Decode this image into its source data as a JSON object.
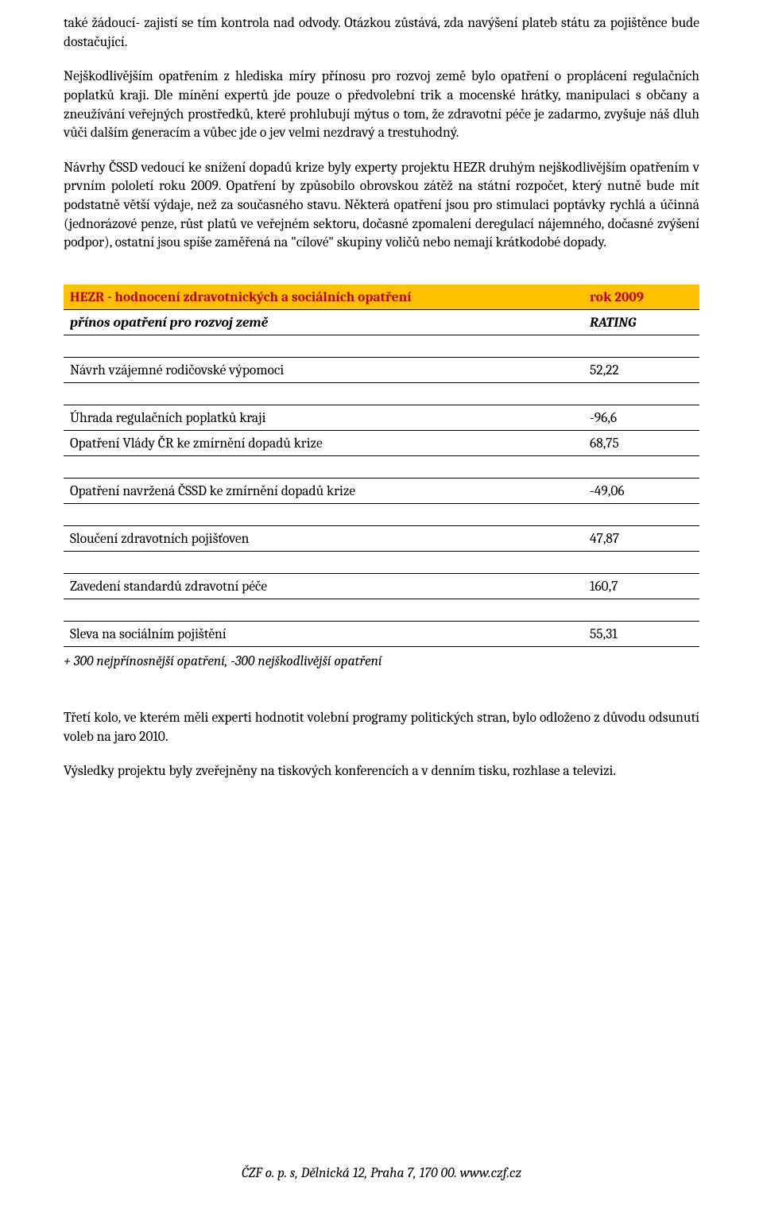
{
  "paragraphs": {
    "p1": "také žádoucí- zajistí se tím kontrola nad odvody. Otázkou zůstává, zda navýšení plateb státu za pojištěnce bude dostačující.",
    "p2": "Nejškodlivějším opatřením z hlediska míry přínosu pro rozvoj země bylo opatření o proplácení regulačních poplatků kraji. Dle mínění expertů jde pouze o předvolební trik a mocenské hrátky, manipulaci s občany a zneužívání veřejných prostředků, které prohlubují mýtus o tom, že zdravotní péče je zadarmo, zvyšuje náš dluh vůči dalším generacím a vůbec jde o jev velmi nezdravý a trestuhodný.",
    "p3": "Návrhy ČSSD vedoucí ke snížení dopadů krize byly experty projektu HEZR  druhým nejškodlivějším opatřením v prvním pololetí roku 2009. Opatření by způsobilo obrovskou zátěž na státní rozpočet, který nutně bude mít podstatně větší výdaje, než za současného stavu. Některá opatření jsou pro stimulaci poptávky rychlá a účinná (jednorázové penze, růst platů ve veřejném sektoru, dočasné zpomalení deregulací nájemného, dočasné zvýšení podpor), ostatní jsou spíše zaměřená na \"cílové\" skupiny voličů nebo nemají krátkodobé dopady.",
    "p4": "Třetí kolo, ve kterém měli experti hodnotit volební programy politických stran, bylo odloženo z důvodu odsunutí voleb na jaro 2010.",
    "p5": "Výsledky projektu byly zveřejněny na tiskových konferencích a v denním tisku, rozhlase a televizi."
  },
  "table": {
    "header": {
      "left": "HEZR - hodnocení zdravotnických a sociálních opatření",
      "right": "rok 2009"
    },
    "subheader": {
      "left": "přínos opatření pro rozvoj země",
      "right": "RATING"
    },
    "rows": [
      {
        "label": "Návrh vzájemné rodičovské výpomoci",
        "value": "52,22",
        "blank_before": true
      },
      {
        "label": "Úhrada regulačních poplatků kraji",
        "value": "-96,6",
        "blank_before": true
      },
      {
        "label": "Opatření Vlády ČR ke zmírnění dopadů krize",
        "value": "68,75",
        "blank_before": false
      },
      {
        "label": "Opatření navržená ČSSD ke zmírnění dopadů krize",
        "value": "-49,06",
        "blank_before": true
      },
      {
        "label": "Sloučení zdravotních pojišťoven",
        "value": "47,87",
        "blank_before": true
      },
      {
        "label": "Zavedení standardů zdravotní péče",
        "value": "160,7",
        "blank_before": true
      },
      {
        "label": "Sleva na sociálním pojištění",
        "value": "55,31",
        "blank_before": true
      }
    ],
    "footnote": "+ 300 nejpřínosnější opatření, -300 nejškodlivější opatření"
  },
  "footer": "ČZF o. p. s, Dělnická 12, Praha 7, 170 00. www.czf.cz"
}
